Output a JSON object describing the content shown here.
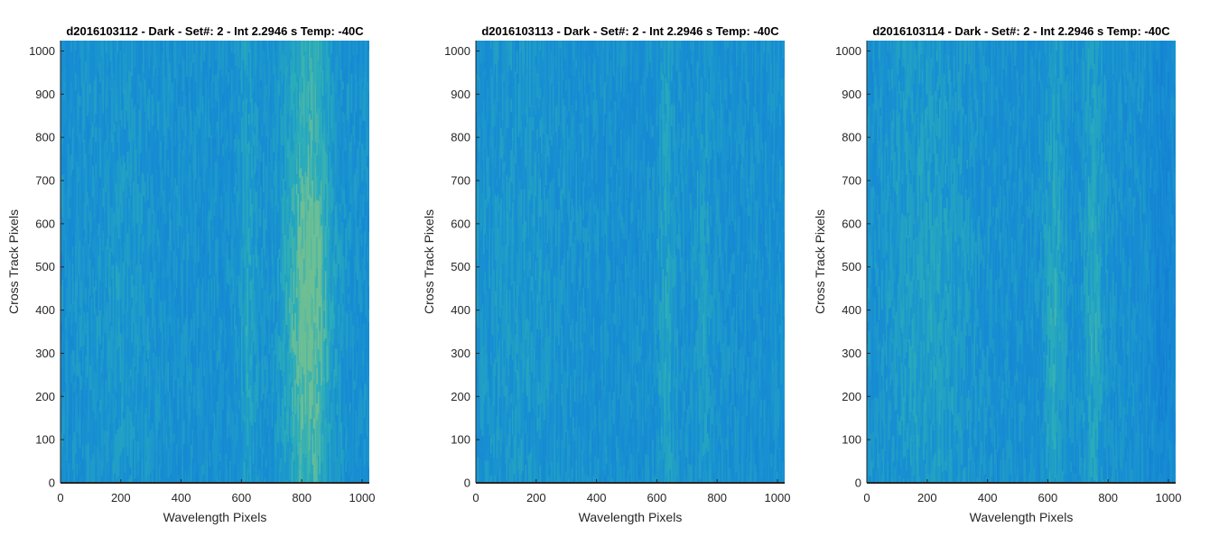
{
  "colors": {
    "base": "#1890d2",
    "deep": "#0f6fd4",
    "warm": "#2fb2b6",
    "hot": "#7cc78a",
    "axis": "#262626"
  },
  "chart_data": [
    {
      "type": "heatmap",
      "title": "d2016103112 - Dark - Set#: 2 - Int 2.2946 s Temp: -40C",
      "xlabel": "Wavelength Pixels",
      "ylabel": "Cross Track Pixels",
      "xlim": [
        0,
        1024
      ],
      "ylim": [
        0,
        1024
      ],
      "xticks": [
        0,
        200,
        400,
        600,
        800,
        1000
      ],
      "yticks": [
        0,
        100,
        200,
        300,
        400,
        500,
        600,
        700,
        800,
        900,
        1000
      ],
      "colormap": "parula",
      "bright_bands": [
        {
          "x_center": 820,
          "x_width": 110,
          "strength": 0.9
        },
        {
          "x_center": 620,
          "x_width": 40,
          "strength": 0.35
        },
        {
          "x_center": 200,
          "x_width": 160,
          "strength": 0.15
        }
      ]
    },
    {
      "type": "heatmap",
      "title": "d2016103113 - Dark - Set#: 2 - Int 2.2946 s Temp: -40C",
      "xlabel": "Wavelength Pixels",
      "ylabel": "Cross Track Pixels",
      "xlim": [
        0,
        1024
      ],
      "ylim": [
        0,
        1024
      ],
      "xticks": [
        0,
        200,
        400,
        600,
        800,
        1000
      ],
      "yticks": [
        0,
        100,
        200,
        300,
        400,
        500,
        600,
        700,
        800,
        900,
        1000
      ],
      "colormap": "parula",
      "bright_bands": [
        {
          "x_center": 630,
          "x_width": 40,
          "strength": 0.35
        },
        {
          "x_center": 750,
          "x_width": 40,
          "strength": 0.25
        },
        {
          "x_center": 150,
          "x_width": 200,
          "strength": 0.15
        }
      ]
    },
    {
      "type": "heatmap",
      "title": "d2016103114 - Dark - Set#: 2 - Int 2.2946 s Temp: -40C",
      "xlabel": "Wavelength Pixels",
      "ylabel": "Cross Track Pixels",
      "xlim": [
        0,
        1024
      ],
      "ylim": [
        0,
        1024
      ],
      "xticks": [
        0,
        200,
        400,
        600,
        800,
        1000
      ],
      "yticks": [
        0,
        100,
        200,
        300,
        400,
        500,
        600,
        700,
        800,
        900,
        1000
      ],
      "colormap": "parula",
      "bright_bands": [
        {
          "x_center": 620,
          "x_width": 45,
          "strength": 0.45
        },
        {
          "x_center": 750,
          "x_width": 45,
          "strength": 0.4
        },
        {
          "x_center": 200,
          "x_width": 180,
          "strength": 0.3
        },
        {
          "x_center": 980,
          "x_width": 60,
          "strength": -0.3
        }
      ]
    }
  ]
}
